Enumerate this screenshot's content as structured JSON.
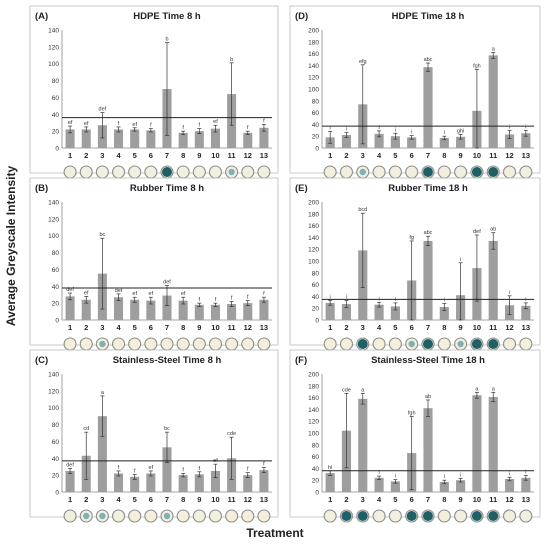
{
  "figure": {
    "y_axis_title": "Average Greyscale Intensity",
    "x_axis_title": "Treatment"
  },
  "chart_data": [
    {
      "panel": "(A)",
      "title": "HDPE Time 8 h",
      "type": "bar",
      "ylim": [
        0,
        140
      ],
      "yticks": [
        0,
        20,
        40,
        60,
        80,
        100,
        120,
        140
      ],
      "threshold": 36,
      "categories": [
        "1",
        "2",
        "3",
        "4",
        "5",
        "6",
        "7",
        "8",
        "9",
        "10",
        "11",
        "12",
        "13"
      ],
      "values": [
        22,
        22,
        27,
        22,
        22,
        21,
        70,
        18,
        20,
        23,
        64,
        18,
        24
      ],
      "errors": [
        4,
        3,
        15,
        3,
        2,
        2,
        55,
        2,
        3,
        4,
        37,
        2,
        4
      ],
      "labels": [
        "ef",
        "ef",
        "def",
        "f",
        "ef",
        "f",
        "b",
        "f",
        "f",
        "ef",
        "b",
        "f",
        "f"
      ],
      "wells": [
        "plain",
        "plain",
        "plain",
        "plain",
        "plain",
        "plain",
        "stain",
        "plain",
        "plain",
        "plain",
        "light",
        "plain",
        "plain"
      ]
    },
    {
      "panel": "(B)",
      "title": "Rubber Time 8 h",
      "type": "bar",
      "ylim": [
        0,
        140
      ],
      "yticks": [
        0,
        20,
        40,
        60,
        80,
        100,
        120,
        140
      ],
      "threshold": 38,
      "categories": [
        "1",
        "2",
        "3",
        "4",
        "5",
        "6",
        "7",
        "8",
        "9",
        "10",
        "11",
        "12",
        "13"
      ],
      "values": [
        28,
        24,
        55,
        27,
        24,
        23,
        29,
        23,
        18,
        18,
        19,
        20,
        24
      ],
      "errors": [
        4,
        4,
        42,
        4,
        3,
        4,
        12,
        4,
        2,
        2,
        3,
        3,
        3
      ],
      "labels": [
        "def",
        "ef",
        "bc",
        "def",
        "ef",
        "ef",
        "def",
        "ef",
        "f",
        "f",
        "f",
        "f",
        "f"
      ],
      "wells": [
        "plain",
        "plain",
        "light",
        "plain",
        "plain",
        "plain",
        "plain",
        "plain",
        "plain",
        "plain",
        "plain",
        "plain",
        "plain"
      ]
    },
    {
      "panel": "(C)",
      "title": "Stainless-Steel Time 8 h",
      "type": "bar",
      "ylim": [
        0,
        140
      ],
      "yticks": [
        0,
        20,
        40,
        60,
        80,
        100,
        120,
        140
      ],
      "threshold": 37,
      "categories": [
        "1",
        "2",
        "3",
        "4",
        "5",
        "6",
        "7",
        "8",
        "9",
        "10",
        "11",
        "12",
        "13"
      ],
      "values": [
        25,
        43,
        90,
        22,
        18,
        22,
        53,
        20,
        21,
        25,
        40,
        20,
        26
      ],
      "errors": [
        3,
        28,
        24,
        3,
        3,
        3,
        18,
        2,
        3,
        8,
        25,
        3,
        3
      ],
      "labels": [
        "def",
        "cd",
        "a",
        "f",
        "f",
        "ef",
        "bc",
        "f",
        "f",
        "ef",
        "cde",
        "f",
        "f"
      ],
      "wells": [
        "plain",
        "light",
        "light",
        "plain",
        "plain",
        "plain",
        "light",
        "plain",
        "plain",
        "plain",
        "plain",
        "plain",
        "plain"
      ]
    },
    {
      "panel": "(D)",
      "title": "HDPE Time 18 h",
      "type": "bar",
      "ylim": [
        0,
        200
      ],
      "yticks": [
        0,
        20,
        40,
        60,
        80,
        100,
        120,
        140,
        160,
        180,
        200
      ],
      "threshold": 37,
      "categories": [
        "1",
        "2",
        "3",
        "4",
        "5",
        "6",
        "7",
        "8",
        "9",
        "10",
        "11",
        "12",
        "13"
      ],
      "values": [
        18,
        22,
        74,
        24,
        20,
        18,
        137,
        17,
        19,
        63,
        157,
        23,
        25
      ],
      "errors": [
        10,
        4,
        67,
        5,
        5,
        3,
        7,
        3,
        4,
        70,
        5,
        7,
        5
      ],
      "labels": [
        "i",
        "i",
        "efg",
        "i",
        "i",
        "i",
        "abc",
        "i",
        "ghi",
        "fgh",
        "a",
        "i",
        "i"
      ],
      "wells": [
        "plain",
        "plain",
        "light",
        "plain",
        "plain",
        "plain",
        "stain",
        "plain",
        "plain",
        "stain",
        "stain",
        "plain",
        "plain"
      ]
    },
    {
      "panel": "(E)",
      "title": "Rubber Time 18 h",
      "type": "bar",
      "ylim": [
        0,
        200
      ],
      "yticks": [
        0,
        20,
        40,
        60,
        80,
        100,
        120,
        140,
        160,
        180,
        200
      ],
      "threshold": 35,
      "categories": [
        "1",
        "2",
        "3",
        "4",
        "5",
        "6",
        "7",
        "8",
        "9",
        "10",
        "11",
        "12",
        "13"
      ],
      "values": [
        29,
        27,
        118,
        26,
        23,
        67,
        134,
        22,
        42,
        88,
        134,
        25,
        24
      ],
      "errors": [
        4,
        6,
        63,
        4,
        6,
        67,
        8,
        6,
        55,
        56,
        14,
        16,
        5
      ],
      "labels": [
        "i",
        "i",
        "bcd",
        "i",
        "i",
        "fg",
        "abc",
        "i",
        "i",
        "def",
        "ab",
        "i",
        "i"
      ],
      "wells": [
        "plain",
        "plain",
        "stain",
        "plain",
        "plain",
        "light",
        "stain",
        "plain",
        "light",
        "stain",
        "stain",
        "plain",
        "plain"
      ]
    },
    {
      "panel": "(F)",
      "title": "Stainless-Steel Time 18 h",
      "type": "bar",
      "ylim": [
        0,
        200
      ],
      "yticks": [
        0,
        20,
        40,
        60,
        80,
        100,
        120,
        140,
        160,
        180,
        200
      ],
      "threshold": 36,
      "categories": [
        "1",
        "2",
        "3",
        "4",
        "5",
        "6",
        "7",
        "8",
        "9",
        "10",
        "11",
        "12",
        "13"
      ],
      "values": [
        32,
        104,
        158,
        24,
        18,
        66,
        142,
        17,
        20,
        164,
        161,
        22,
        24
      ],
      "errors": [
        4,
        63,
        9,
        3,
        3,
        62,
        14,
        3,
        3,
        5,
        8,
        3,
        4
      ],
      "labels": [
        "hi",
        "cde",
        "a",
        "i",
        "i",
        "fgh",
        "ab",
        "i",
        "i",
        "a",
        "a",
        "i",
        "i"
      ],
      "wells": [
        "plain",
        "stain",
        "stain",
        "plain",
        "plain",
        "stain",
        "stain",
        "plain",
        "plain",
        "stain",
        "stain",
        "plain",
        "plain"
      ]
    }
  ]
}
